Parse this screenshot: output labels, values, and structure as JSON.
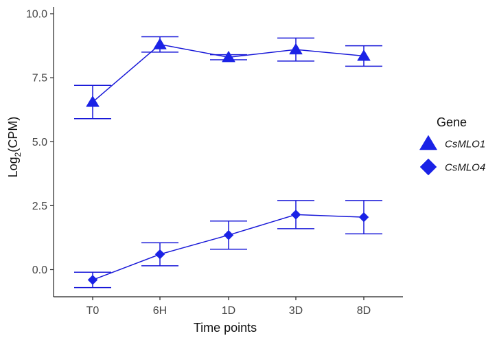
{
  "chart_data": {
    "type": "line",
    "title": "",
    "xlabel": "Time points",
    "ylabel_main": "Log",
    "ylabel_sub": "2",
    "ylabel_tail": "(CPM)",
    "categories": [
      "T0",
      "6H",
      "1D",
      "3D",
      "8D"
    ],
    "ylim": [
      -0.9,
      10.3
    ],
    "yticks": [
      0.0,
      2.5,
      5.0,
      7.5,
      10.0
    ],
    "ytick_labels": [
      "0.0",
      "2.5",
      "5.0",
      "7.5",
      "10.0"
    ],
    "legend": {
      "title": "Gene",
      "position": "right"
    },
    "colors": {
      "line": "#1818d8",
      "marker": "#1a22e6"
    },
    "series": [
      {
        "name": "CsMLO1",
        "marker": "triangle",
        "values": [
          6.55,
          8.8,
          8.3,
          8.6,
          8.35
        ],
        "err_low": [
          5.9,
          8.5,
          8.2,
          8.15,
          7.95
        ],
        "err_high": [
          7.2,
          9.1,
          8.4,
          9.05,
          8.75
        ]
      },
      {
        "name": "CsMLO4",
        "marker": "diamond",
        "values": [
          -0.4,
          0.6,
          1.35,
          2.15,
          2.05
        ],
        "err_low": [
          -0.7,
          0.15,
          0.8,
          1.6,
          1.4
        ],
        "err_high": [
          -0.1,
          1.05,
          1.9,
          2.7,
          2.7
        ]
      }
    ]
  }
}
